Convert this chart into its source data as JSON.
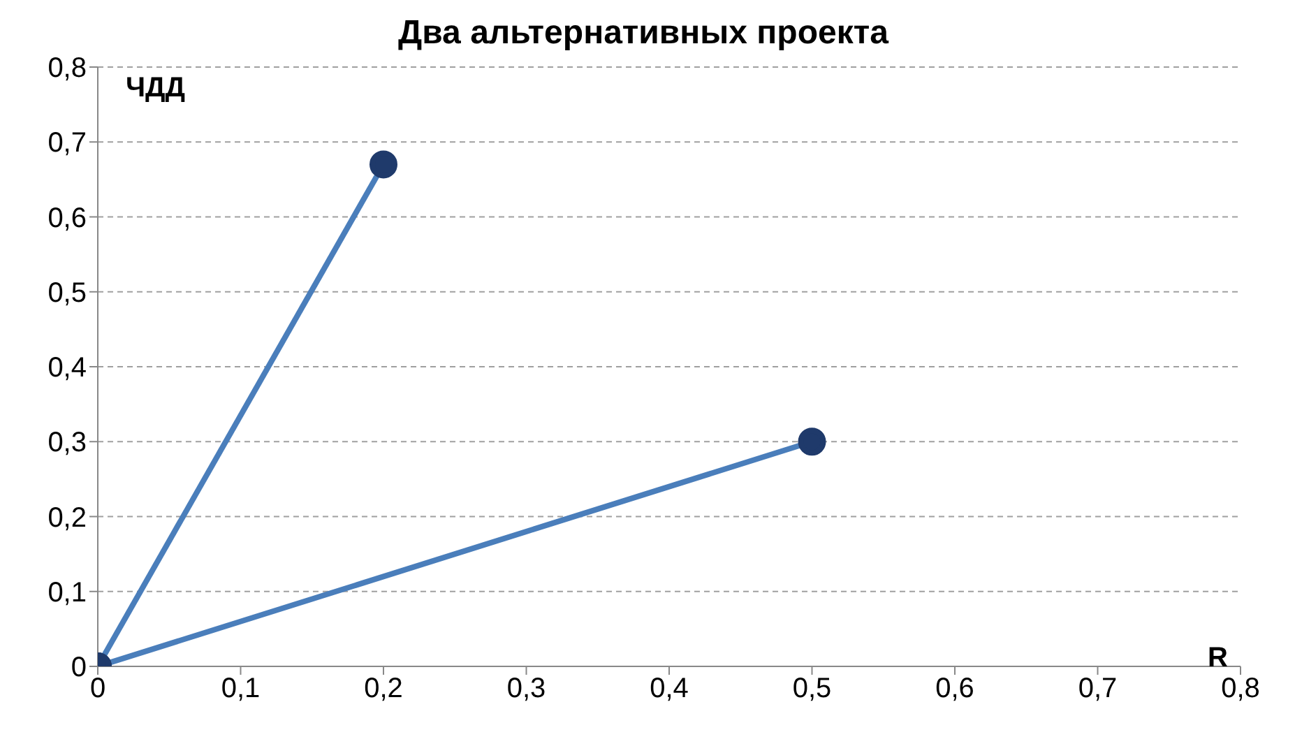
{
  "chart_data": {
    "type": "line",
    "title": "Два альтернативных проекта",
    "xlabel": "R",
    "ylabel": "ЧДД",
    "series": [
      {
        "color": "#4a7ebb",
        "x": [
          0,
          0.2
        ],
        "values": [
          0,
          0.67
        ]
      },
      {
        "color": "#4a7ebb",
        "x": [
          0,
          0.5
        ],
        "values": [
          0,
          0.3
        ]
      }
    ],
    "xlim": [
      0,
      0.8
    ],
    "xticks": [
      0,
      {
        "value": 0.1,
        "label": "0,1"
      },
      {
        "value": 0.2,
        "label": "0,2"
      },
      {
        "value": 0.3,
        "label": "0,3"
      },
      {
        "value": 0.4,
        "label": "0,4"
      },
      {
        "value": 0.5,
        "label": "0,5"
      },
      {
        "value": 0.6,
        "label": "0,6"
      },
      {
        "value": 0.7,
        "label": "0,7"
      },
      {
        "value": 0.8,
        "label": "0,8"
      }
    ],
    "ylim": [
      0,
      0.8
    ],
    "yticks": [
      0,
      {
        "value": 0.1,
        "label": "0,1"
      },
      {
        "value": 0.2,
        "label": "0,2"
      },
      {
        "value": 0.3,
        "label": "0,3"
      },
      {
        "value": 0.4,
        "label": "0,4"
      },
      {
        "value": 0.5,
        "label": "0,5"
      },
      {
        "value": 0.6,
        "label": "0,6"
      },
      {
        "value": 0.7,
        "label": "0,7"
      },
      {
        "value": 0.8,
        "label": "0,8"
      }
    ],
    "grid": "y",
    "marker": "circle",
    "line_style": "solid",
    "legend": false
  }
}
